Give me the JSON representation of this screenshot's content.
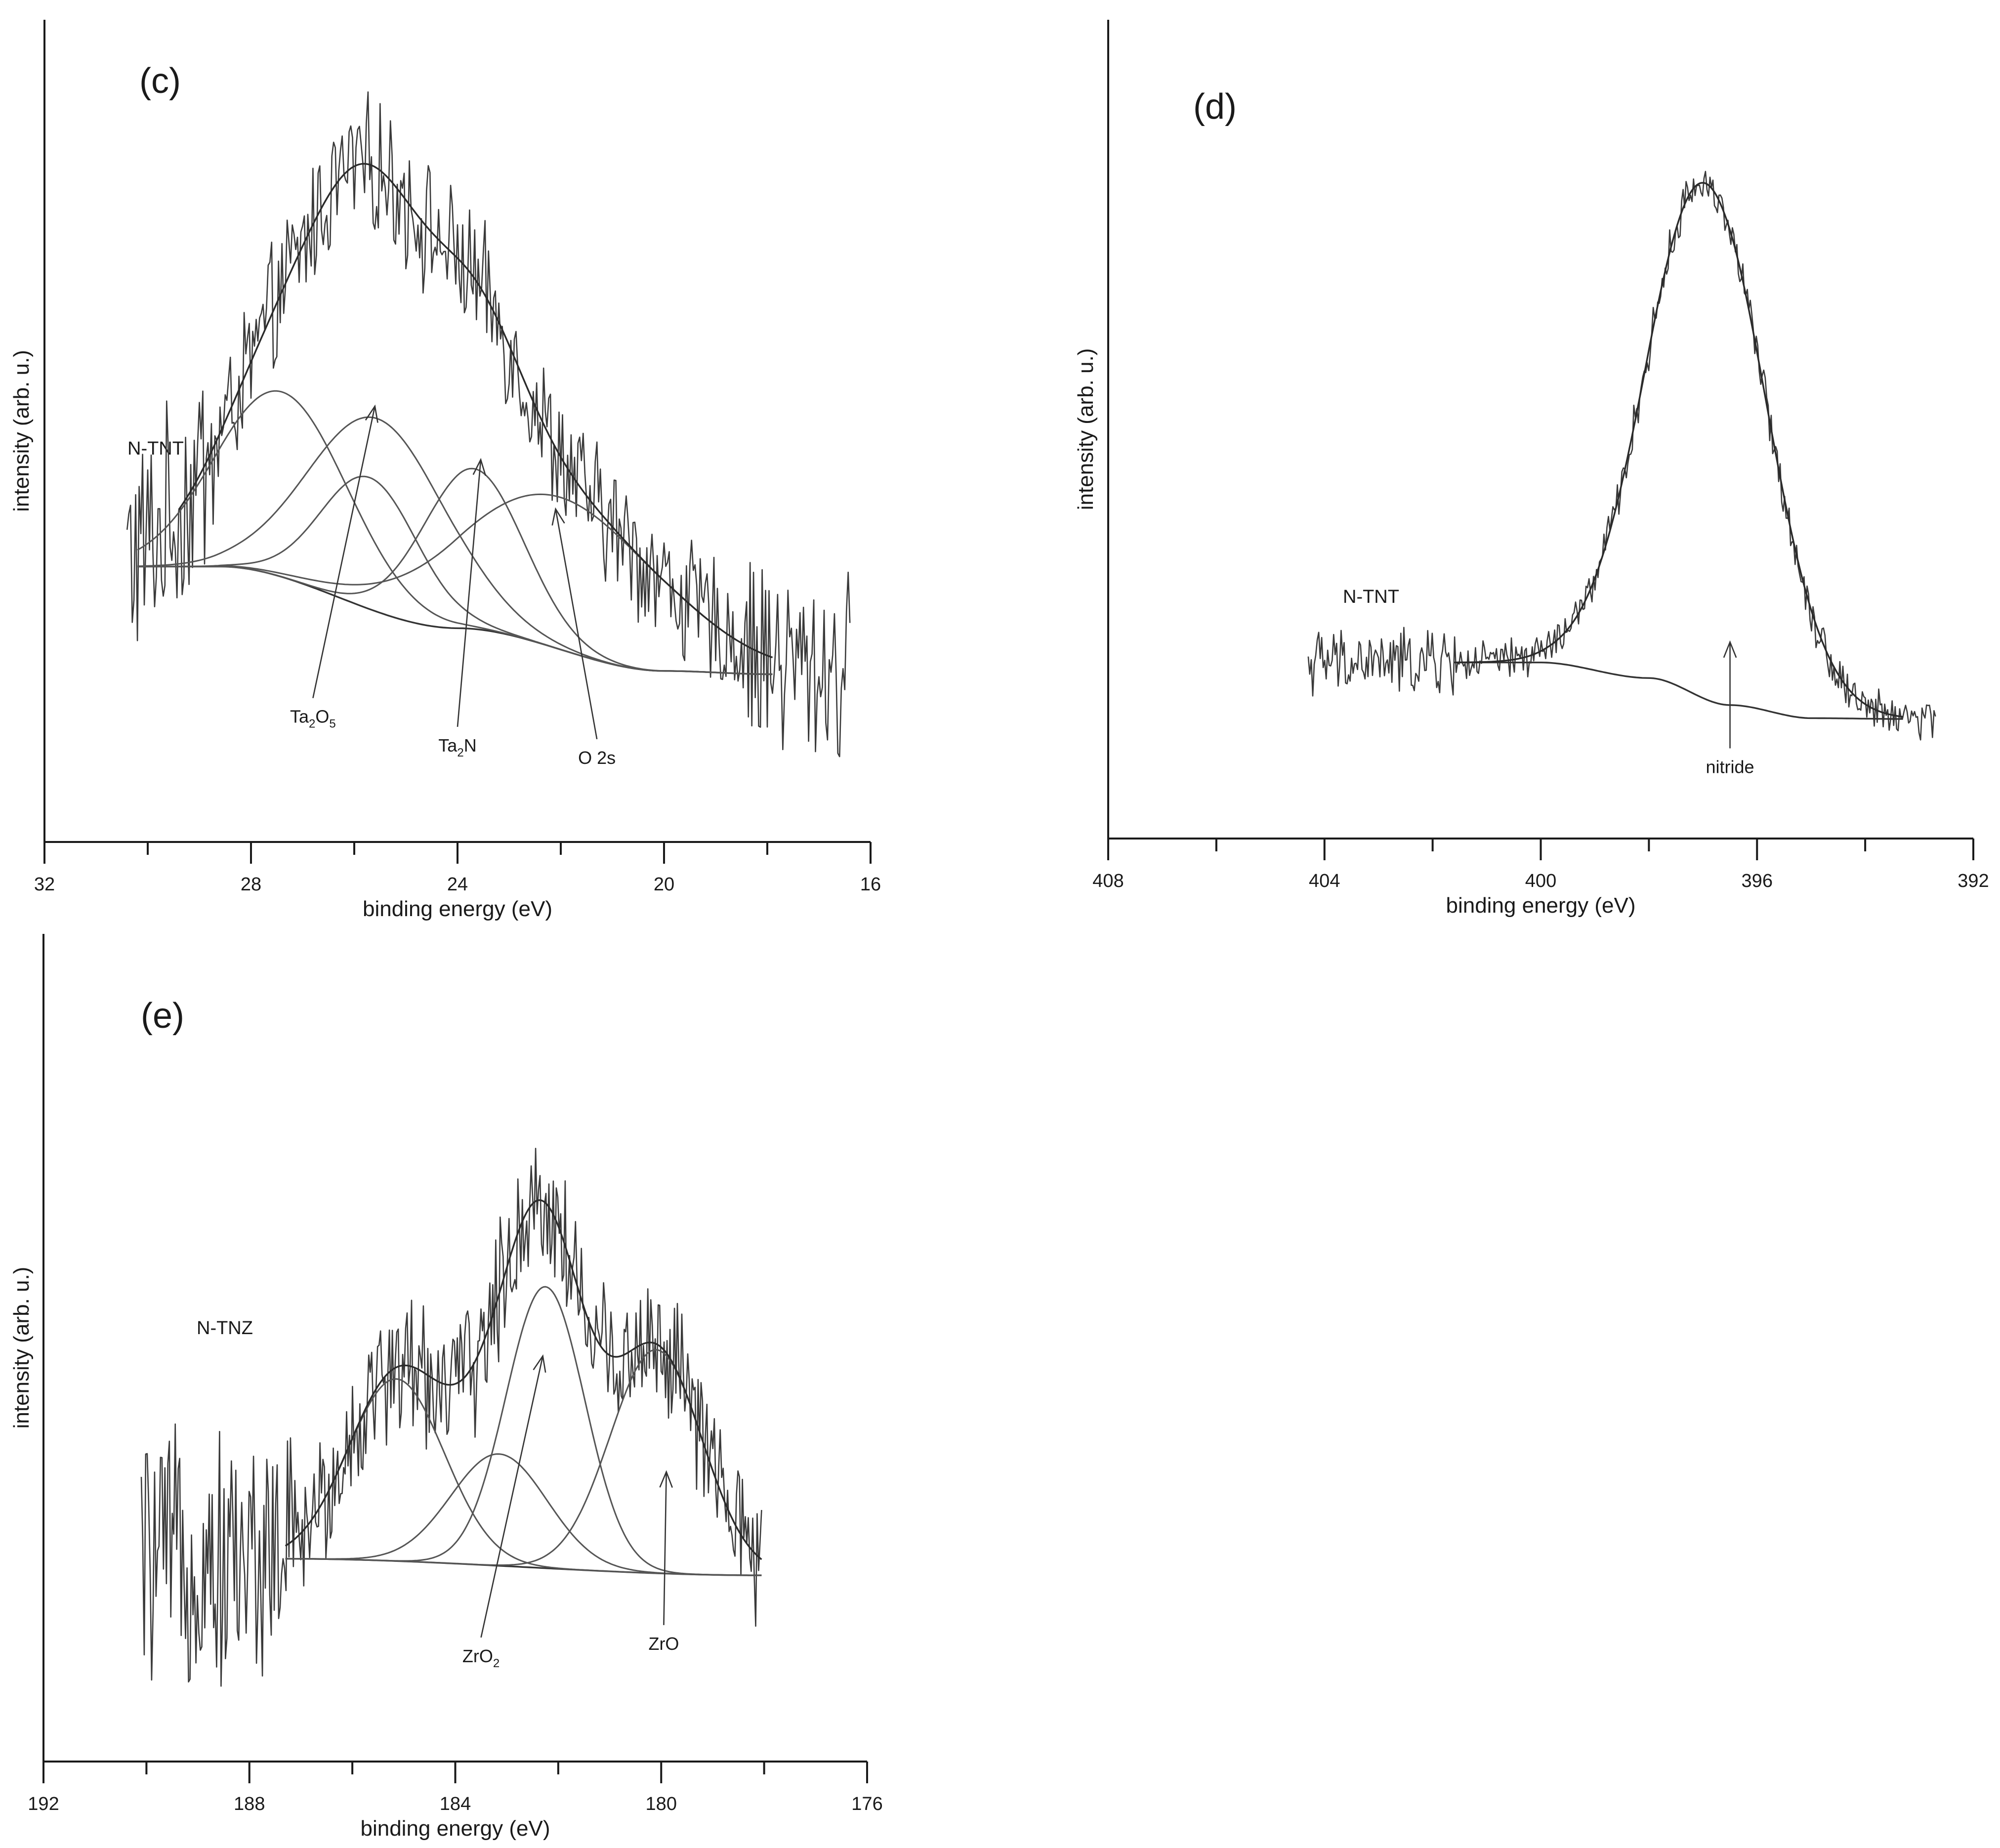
{
  "figure": {
    "panel_count": 3
  },
  "chart_data": [
    {
      "type": "line",
      "panel_label": "(c)",
      "sample_label": "N-TNT",
      "xlabel": "binding energy (eV)",
      "ylabel": "intensity (arb. u.)",
      "x_reversed": true,
      "xlim": [
        32,
        16
      ],
      "xticks": [
        32,
        28,
        24,
        20,
        16
      ],
      "minor_xticks": [
        30,
        26,
        22,
        18
      ],
      "ylim": [
        0,
        100
      ],
      "grid": false,
      "series": [
        {
          "role": "raw",
          "x_range": [
            30.4,
            16.4
          ],
          "noise": 7.0,
          "edge_noise": [
            {
              "x_range": [
                30.4,
                28.6
              ],
              "noise": 12
            },
            {
              "x_range": [
                18.4,
                16.4
              ],
              "noise": 10
            }
          ]
        },
        {
          "role": "background",
          "points": [
            [
              30.2,
              33.5
            ],
            [
              28.6,
              33.5
            ],
            [
              24.0,
              26.0
            ],
            [
              20.0,
              20.8
            ],
            [
              17.9,
              20.4
            ]
          ]
        },
        {
          "role": "component",
          "center": 27.4,
          "height": 22.5,
          "fwhm": 3.0
        },
        {
          "role": "component",
          "center": 25.55,
          "height": 23.5,
          "fwhm": 3.1
        },
        {
          "role": "component",
          "center": 25.7,
          "height": 16.0,
          "fwhm": 2.2
        },
        {
          "role": "component",
          "center": 23.7,
          "height": 19.5,
          "fwhm": 2.3
        },
        {
          "role": "component",
          "center": 22.0,
          "height": 18.5,
          "fwhm": 4.6
        },
        {
          "role": "envelope",
          "x_range": [
            29.4,
            17.9
          ]
        }
      ],
      "annotations": [
        {
          "parts": [
            {
              "t": "Ta"
            },
            {
              "t": "2",
              "sub": true
            },
            {
              "t": "O"
            },
            {
              "t": "5",
              "sub": true
            }
          ],
          "x": 26.8,
          "y": 14.5,
          "arrow_to": [
            25.6,
            53.0
          ]
        },
        {
          "parts": [
            {
              "t": "Ta"
            },
            {
              "t": "2",
              "sub": true
            },
            {
              "t": "N"
            }
          ],
          "x": 24.0,
          "y": 11.0,
          "arrow_to": [
            23.55,
            46.5
          ]
        },
        {
          "parts": [
            {
              "t": "O 2s"
            }
          ],
          "x": 21.3,
          "y": 9.5,
          "arrow_to": [
            22.1,
            40.5
          ]
        }
      ]
    },
    {
      "type": "line",
      "panel_label": "(d)",
      "sample_label": "N-TNT",
      "xlabel": "binding energy (eV)",
      "ylabel": "intensity (arb. u.)",
      "x_reversed": true,
      "xlim": [
        408,
        392
      ],
      "xticks": [
        408,
        404,
        400,
        396,
        392
      ],
      "minor_xticks": [
        406,
        402,
        398,
        394
      ],
      "ylim": [
        0,
        100
      ],
      "grid": false,
      "series": [
        {
          "role": "raw",
          "x_range": [
            404.3,
            392.7
          ],
          "noise": 2.2,
          "edge_noise": [
            {
              "x_range": [
                404.3,
                401.5
              ],
              "noise": 3.5
            }
          ]
        },
        {
          "role": "background",
          "points": [
            [
              401.6,
              21.5
            ],
            [
              400.0,
              21.5
            ],
            [
              398.0,
              19.6
            ],
            [
              396.5,
              16.3
            ],
            [
              395.0,
              14.7
            ],
            [
              393.3,
              14.6
            ]
          ]
        },
        {
          "role": "component",
          "center": 396.95,
          "height": 63.0,
          "fwhm": 2.6
        },
        {
          "role": "envelope",
          "x_range": [
            401.6,
            393.3
          ]
        }
      ],
      "annotations": [
        {
          "parts": [
            {
              "t": "nitride"
            }
          ],
          "x": 396.5,
          "y": 8.0,
          "arrow_to": [
            396.5,
            24.0
          ]
        }
      ]
    },
    {
      "type": "line",
      "panel_label": "(e)",
      "sample_label": "N-TNZ",
      "xlabel": "binding energy (eV)",
      "ylabel": "intensity (arb. u.)",
      "x_reversed": true,
      "xlim": [
        192,
        176
      ],
      "xticks": [
        192,
        188,
        184,
        180,
        176
      ],
      "minor_xticks": [
        190,
        186,
        182,
        178
      ],
      "ylim": [
        0,
        100
      ],
      "grid": false,
      "series": [
        {
          "role": "raw",
          "x_range": [
            190.1,
            178.05
          ],
          "noise": 7.5,
          "edge_noise": [
            {
              "x_range": [
                190.1,
                187.2
              ],
              "noise": 13
            }
          ]
        },
        {
          "role": "background",
          "points": [
            [
              187.3,
              24.5
            ],
            [
              178.05,
              22.5
            ]
          ]
        },
        {
          "role": "component",
          "center": 185.15,
          "height": 22.0,
          "fwhm": 2.2
        },
        {
          "role": "component",
          "center": 183.15,
          "height": 13.5,
          "fwhm": 2.2
        },
        {
          "role": "component",
          "center": 182.25,
          "height": 34.0,
          "fwhm": 1.8
        },
        {
          "role": "component",
          "center": 180.1,
          "height": 27.0,
          "fwhm": 2.1
        },
        {
          "role": "envelope",
          "x_range": [
            187.3,
            178.05
          ]
        }
      ],
      "annotations": [
        {
          "parts": [
            {
              "t": "ZrO"
            },
            {
              "t": "2",
              "sub": true
            }
          ],
          "x": 183.5,
          "y": 12.0,
          "arrow_to": [
            182.3,
            49.0
          ]
        },
        {
          "parts": [
            {
              "t": "ZrO"
            }
          ],
          "x": 179.95,
          "y": 13.5,
          "arrow_to": [
            179.9,
            35.0
          ]
        }
      ]
    }
  ]
}
